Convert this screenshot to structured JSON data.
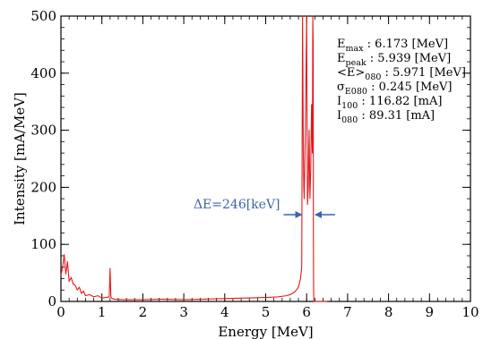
{
  "colors": {
    "spectrum": "#e8171b",
    "annotation": "#3a64b0",
    "axis": "#000000"
  },
  "chart_data": {
    "type": "line",
    "xlabel": "Energy [MeV]",
    "ylabel": "Intensity [mA/MeV]",
    "xlim": [
      0,
      10
    ],
    "ylim": [
      0,
      500
    ],
    "xticks": [
      0,
      1,
      2,
      3,
      4,
      5,
      6,
      7,
      8,
      9,
      10
    ],
    "yticks": [
      0,
      100,
      200,
      300,
      400,
      500
    ],
    "grid": false,
    "series": [
      {
        "x": [
          0.0,
          0.04,
          0.08,
          0.12,
          0.16,
          0.2,
          0.25,
          0.3,
          0.35,
          0.4,
          0.45,
          0.5,
          0.55,
          0.6,
          0.7,
          0.8,
          0.9,
          1.0,
          1.1,
          1.18,
          1.2,
          1.22,
          1.25,
          1.3,
          1.5,
          2.0,
          2.5,
          3.0,
          3.5,
          4.0,
          4.5,
          5.0,
          5.3,
          5.5,
          5.6,
          5.7,
          5.75,
          5.8,
          5.85,
          5.88,
          5.9,
          5.92,
          5.93,
          5.94,
          5.95,
          5.97,
          6.0,
          6.02,
          6.04,
          6.05,
          6.06,
          6.08,
          6.1,
          6.12,
          6.14,
          6.15,
          6.16,
          6.165,
          6.17,
          6.175,
          6.18,
          6.2,
          6.3,
          6.5
        ],
        "y": [
          45,
          60,
          82,
          48,
          70,
          35,
          42,
          30,
          28,
          20,
          25,
          14,
          18,
          10,
          12,
          8,
          10,
          6,
          7,
          8,
          58,
          8,
          5,
          4,
          3,
          3,
          4,
          3,
          4,
          5,
          6,
          7,
          8,
          10,
          12,
          16,
          20,
          25,
          40,
          60,
          500,
          260,
          200,
          180,
          220,
          300,
          500,
          170,
          200,
          260,
          300,
          180,
          230,
          345,
          260,
          500,
          450,
          120,
          20,
          3,
          0,
          0,
          0,
          0
        ]
      }
    ],
    "stats": [
      {
        "label": "E",
        "sub": "max",
        "value": " : 6.173 [MeV]"
      },
      {
        "label": "E",
        "sub": "peak",
        "value": " : 5.939 [MeV]"
      },
      {
        "label": "<E>",
        "sub": "080",
        "value": " : 5.971 [MeV]"
      },
      {
        "label": "σ",
        "sub": "E080",
        "value": " : 0.245 [MeV]"
      },
      {
        "label": "I",
        "sub": "100",
        "value": " : 116.82 [mA]"
      },
      {
        "label": "I",
        "sub": "080",
        "value": " : 89.31 [mA]"
      }
    ],
    "annotation": {
      "text": "ΔE=246[keV]",
      "x_left": 5.92,
      "x_right": 6.17
    }
  }
}
